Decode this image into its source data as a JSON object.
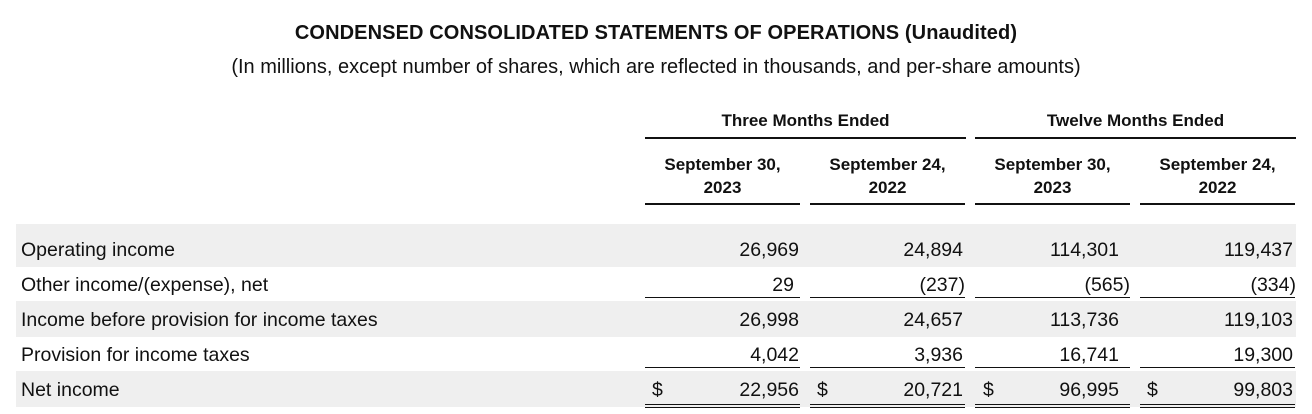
{
  "header": {
    "title": "CONDENSED CONSOLIDATED STATEMENTS OF OPERATIONS (Unaudited)",
    "subtitle": "(In millions, except number of shares, which are reflected in thousands, and per-share amounts)"
  },
  "column_groups": [
    {
      "label": "Three Months Ended"
    },
    {
      "label": "Twelve Months Ended"
    }
  ],
  "columns": [
    {
      "line1": "September 30,",
      "line2": "2023"
    },
    {
      "line1": "September 24,",
      "line2": "2022"
    },
    {
      "line1": "September 30,",
      "line2": "2023"
    },
    {
      "line1": "September 24,",
      "line2": "2022"
    }
  ],
  "currency_symbol": "$",
  "rows": [
    {
      "label": "Operating income",
      "values": [
        "26,969",
        "24,894",
        "114,301",
        "119,437"
      ]
    },
    {
      "label": "Other income/(expense), net",
      "values": [
        "29",
        "(237)",
        "(565)",
        "(334)"
      ]
    },
    {
      "label": "Income before provision for income taxes",
      "values": [
        "26,998",
        "24,657",
        "113,736",
        "119,103"
      ]
    },
    {
      "label": "Provision for income taxes",
      "values": [
        "4,042",
        "3,936",
        "16,741",
        "19,300"
      ]
    },
    {
      "label": "Net income",
      "values": [
        "22,956",
        "20,721",
        "96,995",
        "99,803"
      ]
    }
  ]
}
